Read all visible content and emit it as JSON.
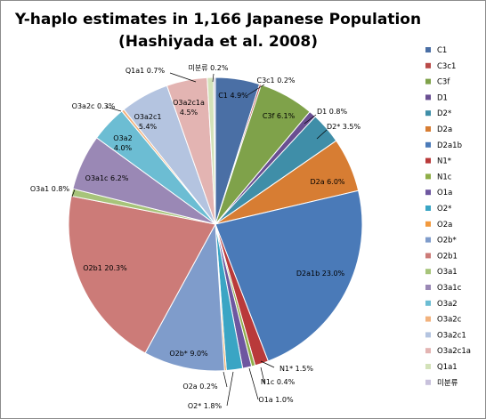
{
  "chart_data": {
    "type": "pie",
    "title_line1": "Y-haplo estimates in 1,166 Japanese Population",
    "title_line2": "(Hashiyada et al. 2008)",
    "legend_placement": "right",
    "slices": [
      {
        "name": "C1",
        "label": "C1 4.9%",
        "value": 4.9,
        "color": "#4a6fa5"
      },
      {
        "name": "C3c1",
        "label": "C3c1 0.2%",
        "value": 0.2,
        "color": "#b94a48"
      },
      {
        "name": "C3f",
        "label": "C3f 6.1%",
        "value": 6.1,
        "color": "#7fa24a"
      },
      {
        "name": "D1",
        "label": "D1 0.8%",
        "value": 0.8,
        "color": "#6a4f92"
      },
      {
        "name": "D2*",
        "label": "D2* 3.5%",
        "value": 3.5,
        "color": "#3f8ea8"
      },
      {
        "name": "D2a",
        "label": "D2a 6.0%",
        "value": 6.0,
        "color": "#d77d33"
      },
      {
        "name": "D2a1b",
        "label": "D2a1b 23.0%",
        "value": 23.0,
        "color": "#4a7ab8"
      },
      {
        "name": "N1*",
        "label": "N1* 1.5%",
        "value": 1.5,
        "color": "#b93a3a"
      },
      {
        "name": "N1c",
        "label": "N1c 0.4%",
        "value": 0.4,
        "color": "#8fae48"
      },
      {
        "name": "O1a",
        "label": "O1a 1.0%",
        "value": 1.0,
        "color": "#6e57a0"
      },
      {
        "name": "O2*",
        "label": "O2* 1.8%",
        "value": 1.8,
        "color": "#3aa5c4"
      },
      {
        "name": "O2a",
        "label": "O2a 0.2%",
        "value": 0.2,
        "color": "#f29a3e"
      },
      {
        "name": "O2b*",
        "label": "O2b* 9.0%",
        "value": 9.0,
        "color": "#7f9ccb"
      },
      {
        "name": "O2b1",
        "label": "O2b1 20.3%",
        "value": 20.3,
        "color": "#cc7b78"
      },
      {
        "name": "O3a1",
        "label": "O3a1 0.8%",
        "value": 0.8,
        "color": "#a7c47a"
      },
      {
        "name": "O3a1c",
        "label": "O3a1c 6.2%",
        "value": 6.2,
        "color": "#9a88b5"
      },
      {
        "name": "O3a2",
        "label": "O3a2\n4.0%",
        "value": 4.0,
        "color": "#6cbdd3"
      },
      {
        "name": "O3a2c",
        "label": "O3a2c 0.3%",
        "value": 0.3,
        "color": "#f2b27d"
      },
      {
        "name": "O3a2c1",
        "label": "O3a2c1\n5.4%",
        "value": 5.4,
        "color": "#b4c4e0"
      },
      {
        "name": "O3a2c1a",
        "label": "O3a2c1a\n4.5%",
        "value": 4.5,
        "color": "#e3b4b2"
      },
      {
        "name": "Q1a1",
        "label": "Q1a1 0.7%",
        "value": 0.7,
        "color": "#d3e2b9"
      },
      {
        "name": "미분류",
        "label": "미분류 0.2%",
        "value": 0.2,
        "color": "#c8c1dc"
      }
    ]
  }
}
